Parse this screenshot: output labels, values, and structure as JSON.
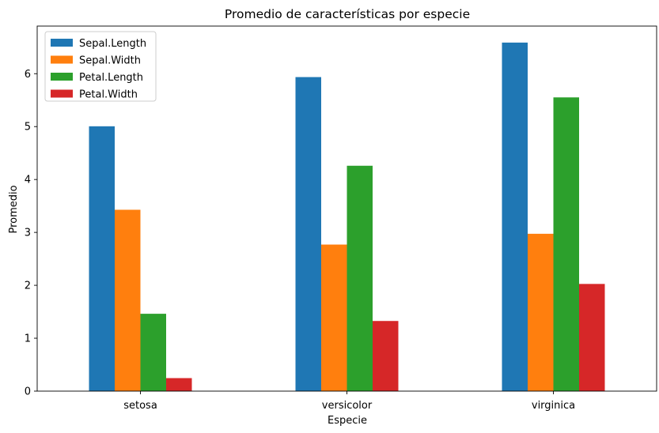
{
  "chart_data": {
    "type": "bar",
    "title": "Promedio de características por especie",
    "xlabel": "Especie",
    "ylabel": "Promedio",
    "categories": [
      "setosa",
      "versicolor",
      "virginica"
    ],
    "ylim": [
      0,
      6.9
    ],
    "yticks": [
      0,
      1,
      2,
      3,
      4,
      5,
      6
    ],
    "grid": false,
    "legend_position": "top-left",
    "series": [
      {
        "name": "Sepal.Length",
        "color": "#1f77b4",
        "values": [
          5.006,
          5.936,
          6.588
        ]
      },
      {
        "name": "Sepal.Width",
        "color": "#ff7f0e",
        "values": [
          3.428,
          2.77,
          2.974
        ]
      },
      {
        "name": "Petal.Length",
        "color": "#2ca02c",
        "values": [
          1.462,
          4.26,
          5.552
        ]
      },
      {
        "name": "Petal.Width",
        "color": "#d62728",
        "values": [
          0.246,
          1.326,
          2.026
        ]
      }
    ]
  }
}
